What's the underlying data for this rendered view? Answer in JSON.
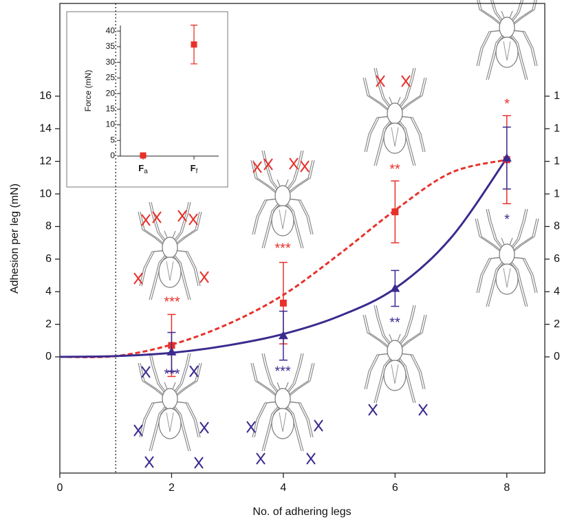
{
  "chart_data": [
    {
      "type": "errorscatter",
      "xlabel": "No. of adhering legs",
      "ylabel": "Adhesion per leg (mN)",
      "x": [
        2,
        4,
        6,
        8
      ],
      "series": [
        {
          "color": "#e8302a",
          "marker": "square",
          "values": [
            0.7,
            3.3,
            8.9,
            12.1
          ],
          "errors": [
            1.9,
            2.5,
            1.9,
            2.7
          ]
        },
        {
          "color": "#3b2a8e",
          "marker": "triangle",
          "values": [
            0.3,
            1.3,
            4.2,
            12.2
          ],
          "errors": [
            1.2,
            1.5,
            1.1,
            1.9
          ]
        }
      ],
      "fits": [
        {
          "color": "#e8302a",
          "dashed": true,
          "x": [
            0,
            1,
            2,
            3,
            4,
            5,
            6,
            7,
            8
          ],
          "values": [
            0,
            0.05,
            0.75,
            2.0,
            3.8,
            6.3,
            9.0,
            11.3,
            12.1
          ]
        },
        {
          "color": "#3b2a8e",
          "dashed": false,
          "x": [
            0,
            1,
            2,
            3,
            4,
            5,
            6,
            7,
            8
          ],
          "values": [
            0,
            0.05,
            0.25,
            0.7,
            1.4,
            2.5,
            4.2,
            7.3,
            12.2
          ]
        }
      ],
      "annotations": [
        {
          "text": "***",
          "color": "#e8302a"
        },
        {
          "text": "***",
          "color": "#e8302a"
        },
        {
          "text": "**",
          "color": "#e8302a"
        },
        {
          "text": "*",
          "color": "#e8302a"
        },
        {
          "text": "***",
          "color": "#3b2a8e"
        },
        {
          "text": "***",
          "color": "#3b2a8e"
        },
        {
          "text": "**",
          "color": "#3b2a8e"
        },
        {
          "text": "*",
          "color": "#3b2a8e"
        }
      ],
      "vline": 1,
      "xlim": [
        0,
        8.68
      ],
      "ylim": [
        -7.13,
        21.69
      ],
      "xticks": [
        0,
        2,
        4,
        6,
        8
      ],
      "yticks": [
        0,
        2,
        4,
        6,
        8,
        10,
        12,
        14,
        16
      ],
      "y2lim": [
        -7.13,
        21.69
      ],
      "y2ticks": [
        0,
        2,
        4,
        6,
        8,
        {
          "value": 10,
          "label": "1"
        },
        {
          "value": 12,
          "label": "1"
        },
        {
          "value": 14,
          "label": "1"
        },
        {
          "value": 16,
          "label": "1"
        }
      ]
    },
    {
      "type": "errorscatter-inset",
      "ylabel": "Force (mN)",
      "categories": [
        {
          "symbol": "F",
          "subscript": "a"
        },
        {
          "symbol": "F",
          "subscript": "f"
        }
      ],
      "values": [
        0.2,
        35.7
      ],
      "errors": [
        0,
        6.2
      ],
      "color": "#e8302a",
      "ylim": [
        0,
        41.8
      ],
      "yticks": [
        0,
        5,
        10,
        15,
        20,
        25,
        30,
        35,
        40
      ]
    }
  ]
}
